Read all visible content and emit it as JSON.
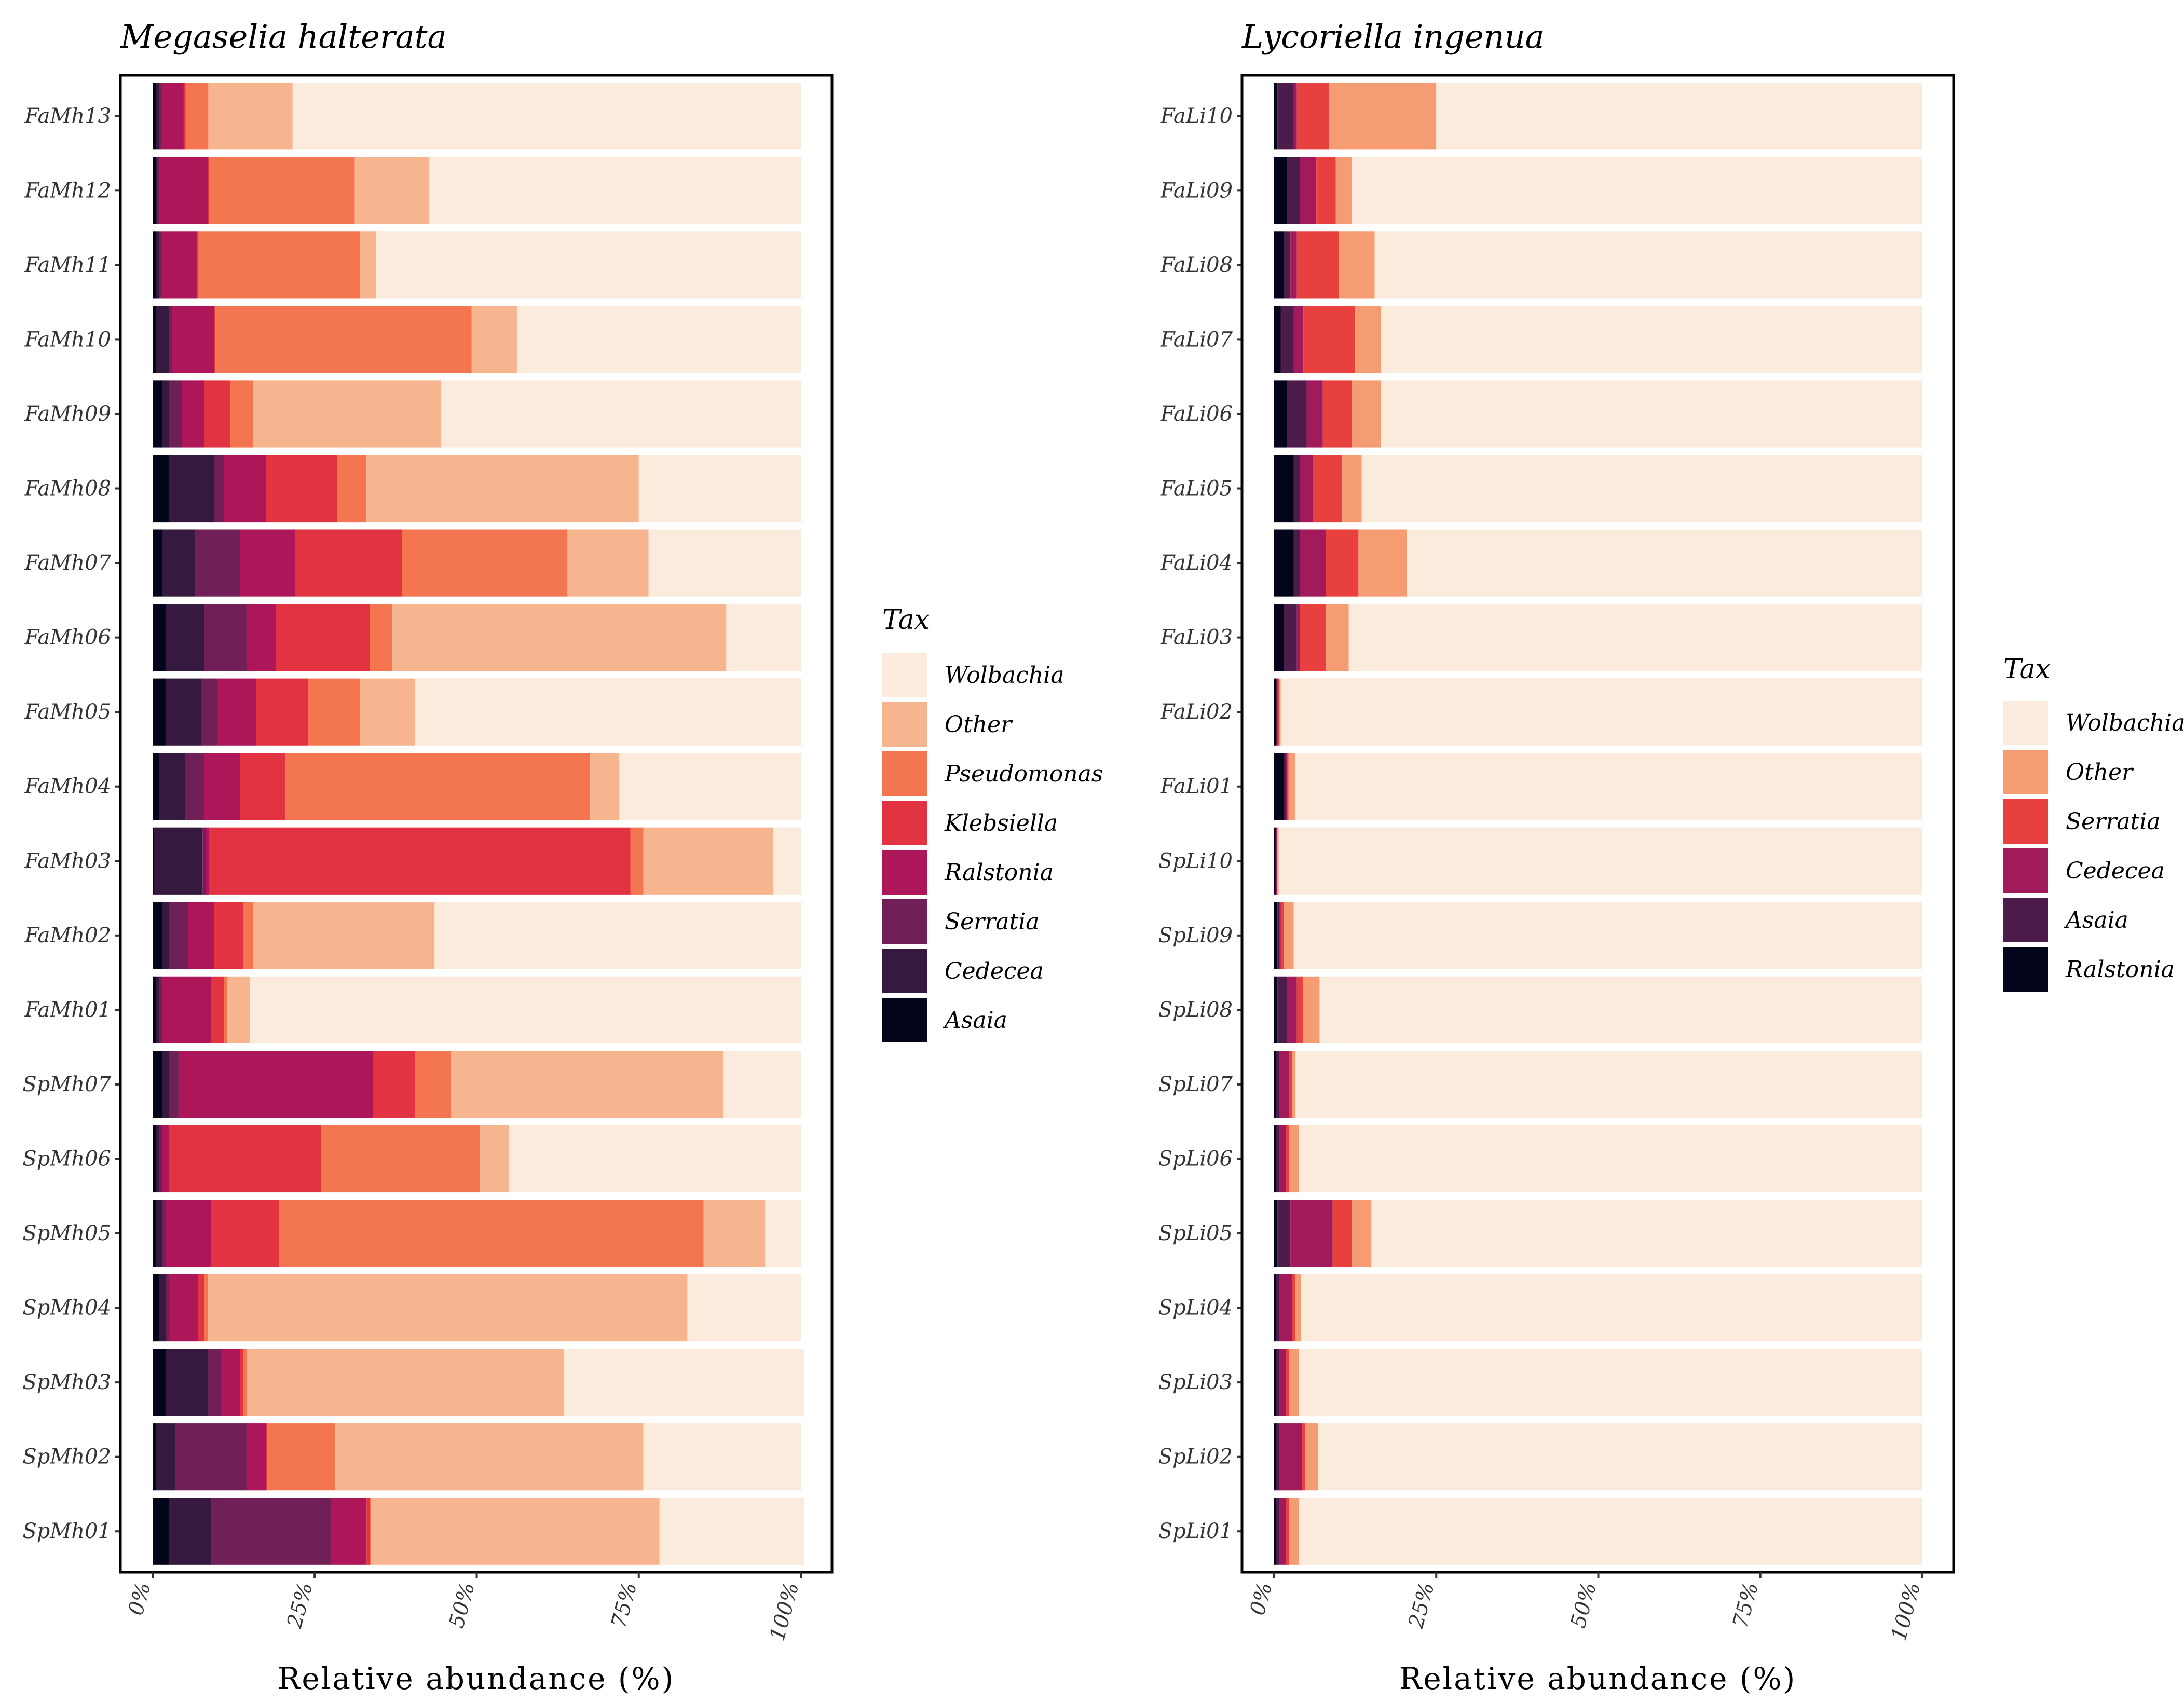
{
  "chart_data": [
    {
      "type": "bar",
      "orientation": "horizontal",
      "stacked": true,
      "title": "Megaselia halterata",
      "xlabel": "Relative abundance (%)",
      "ylabel": "",
      "xlim": [
        0,
        100
      ],
      "x_ticks": [
        "0%",
        "25%",
        "50%",
        "75%",
        "100%"
      ],
      "legend_title": "Tax",
      "legend_position": "right",
      "categories": [
        "FaMh13",
        "FaMh12",
        "FaMh11",
        "FaMh10",
        "FaMh09",
        "FaMh08",
        "FaMh07",
        "FaMh06",
        "FaMh05",
        "FaMh04",
        "FaMh03",
        "FaMh02",
        "FaMh01",
        "SpMh07",
        "SpMh06",
        "SpMh05",
        "SpMh04",
        "SpMh03",
        "SpMh02",
        "SpMh01"
      ],
      "stack_order": [
        "Asaia",
        "Cedecea",
        "Serratia",
        "Ralstonia",
        "Klebsiella",
        "Pseudomonas",
        "Other",
        "Wolbachia"
      ],
      "legend_order": [
        "Wolbachia",
        "Other",
        "Pseudomonas",
        "Klebsiella",
        "Ralstonia",
        "Serratia",
        "Cedecea",
        "Asaia"
      ],
      "colors": {
        "Wolbachia": "#FAEBDD",
        "Other": "#F6B48F",
        "Pseudomonas": "#F37651",
        "Klebsiella": "#E13342",
        "Ralstonia": "#AD1759",
        "Serratia": "#701F57",
        "Cedecea": "#35193E",
        "Asaia": "#03051A"
      },
      "series": [
        {
          "name": "Asaia",
          "values": [
            0.5,
            0.5,
            0.5,
            0.5,
            1.5,
            2.5,
            1.5,
            2.0,
            2.0,
            1.0,
            0.2,
            1.5,
            0.5,
            1.5,
            0.5,
            0.5,
            1.0,
            2.0,
            0.5,
            2.5
          ]
        },
        {
          "name": "Cedecea",
          "values": [
            0.5,
            0.2,
            0.5,
            2.0,
            1.0,
            7.0,
            5.0,
            6.0,
            5.5,
            4.0,
            7.5,
            1.0,
            0.5,
            1.0,
            0.5,
            1.0,
            1.0,
            6.5,
            3.0,
            6.5
          ]
        },
        {
          "name": "Serratia",
          "values": [
            0.3,
            0.3,
            0.3,
            0.5,
            2.0,
            1.5,
            7.0,
            6.5,
            2.5,
            3.0,
            0.5,
            3.0,
            0.5,
            1.5,
            0.5,
            0.5,
            0.5,
            2.0,
            11.0,
            18.5
          ]
        },
        {
          "name": "Ralstonia",
          "values": [
            3.5,
            7.5,
            5.5,
            6.5,
            3.5,
            6.5,
            8.5,
            4.5,
            6.0,
            5.5,
            0.5,
            4.0,
            7.5,
            30.0,
            1.0,
            7.0,
            4.5,
            3.0,
            3.0,
            5.5
          ]
        },
        {
          "name": "Klebsiella",
          "values": [
            0.3,
            0.2,
            0.2,
            0.2,
            4.0,
            11.0,
            16.5,
            14.5,
            8.0,
            7.0,
            65.0,
            4.5,
            2.0,
            6.5,
            23.5,
            10.5,
            1.0,
            0.5,
            0.2,
            0.5
          ]
        },
        {
          "name": "Pseudomonas",
          "values": [
            3.5,
            22.5,
            25.0,
            39.5,
            3.5,
            4.5,
            25.5,
            3.5,
            8.0,
            47.0,
            2.0,
            1.5,
            0.5,
            5.5,
            24.5,
            65.5,
            0.5,
            0.5,
            10.5,
            0.2
          ]
        },
        {
          "name": "Other",
          "values": [
            13.0,
            11.5,
            2.5,
            7.0,
            29.0,
            42.0,
            12.5,
            51.5,
            8.5,
            4.5,
            20.0,
            28.0,
            3.5,
            42.0,
            4.5,
            9.5,
            74.0,
            49.0,
            47.5,
            44.5
          ]
        },
        {
          "name": "Wolbachia",
          "values": [
            78.4,
            57.3,
            65.5,
            43.8,
            55.5,
            25.0,
            23.5,
            11.5,
            59.5,
            28.0,
            4.3,
            56.5,
            85.0,
            12.0,
            45.0,
            5.5,
            17.5,
            37.0,
            24.3,
            22.3
          ]
        }
      ]
    },
    {
      "type": "bar",
      "orientation": "horizontal",
      "stacked": true,
      "title": "Lycoriella ingenua",
      "xlabel": "Relative abundance (%)",
      "ylabel": "",
      "xlim": [
        0,
        100
      ],
      "x_ticks": [
        "0%",
        "25%",
        "50%",
        "75%",
        "100%"
      ],
      "legend_title": "Tax",
      "legend_position": "right",
      "categories": [
        "FaLi10",
        "FaLi09",
        "FaLi08",
        "FaLi07",
        "FaLi06",
        "FaLi05",
        "FaLi04",
        "FaLi03",
        "FaLi02",
        "FaLi01",
        "SpLi10",
        "SpLi09",
        "SpLi08",
        "SpLi07",
        "SpLi06",
        "SpLi05",
        "SpLi04",
        "SpLi03",
        "SpLi02",
        "SpLi01"
      ],
      "stack_order": [
        "Ralstonia",
        "Asaia",
        "Cedecea",
        "Serratia",
        "Other",
        "Wolbachia"
      ],
      "legend_order": [
        "Wolbachia",
        "Other",
        "Serratia",
        "Cedecea",
        "Asaia",
        "Ralstonia"
      ],
      "colors": {
        "Wolbachia": "#FAEBDD",
        "Other": "#F69C73",
        "Serratia": "#E83F3F",
        "Cedecea": "#A11A5B",
        "Asaia": "#4C1D4B",
        "Ralstonia": "#03051A"
      },
      "series": [
        {
          "name": "Ralstonia",
          "values": [
            0.5,
            2.0,
            1.5,
            1.0,
            2.0,
            3.0,
            3.0,
            1.5,
            0.3,
            1.5,
            0.2,
            0.5,
            0.5,
            0.3,
            0.3,
            0.5,
            0.3,
            0.3,
            0.3,
            0.3
          ]
        },
        {
          "name": "Asaia",
          "values": [
            2.5,
            2.0,
            1.0,
            2.0,
            3.0,
            1.0,
            1.0,
            2.0,
            0.2,
            0.3,
            0.1,
            0.3,
            1.5,
            0.5,
            0.5,
            2.0,
            0.5,
            0.5,
            0.5,
            0.5
          ]
        },
        {
          "name": "Cedecea",
          "values": [
            0.5,
            2.5,
            1.0,
            1.5,
            2.5,
            2.0,
            4.0,
            0.5,
            0.1,
            0.2,
            0.1,
            0.2,
            1.5,
            1.5,
            1.0,
            6.5,
            2.0,
            1.0,
            3.5,
            1.0
          ]
        },
        {
          "name": "Serratia",
          "values": [
            5.0,
            3.0,
            6.5,
            8.0,
            4.5,
            4.5,
            5.0,
            4.0,
            0.2,
            0.2,
            0.1,
            0.5,
            1.0,
            0.5,
            0.5,
            3.0,
            0.5,
            0.5,
            0.5,
            0.5
          ]
        },
        {
          "name": "Other",
          "values": [
            16.5,
            2.5,
            5.5,
            4.0,
            4.5,
            3.0,
            7.5,
            3.5,
            0.2,
            1.0,
            0.2,
            1.5,
            2.5,
            0.5,
            1.5,
            3.0,
            0.8,
            1.5,
            2.0,
            1.5
          ]
        },
        {
          "name": "Wolbachia",
          "values": [
            75.0,
            88.0,
            84.5,
            83.5,
            83.5,
            86.5,
            79.5,
            88.5,
            99.0,
            96.8,
            99.3,
            97.0,
            93.0,
            96.7,
            96.2,
            85.0,
            95.9,
            96.2,
            93.2,
            96.2
          ]
        }
      ]
    }
  ]
}
